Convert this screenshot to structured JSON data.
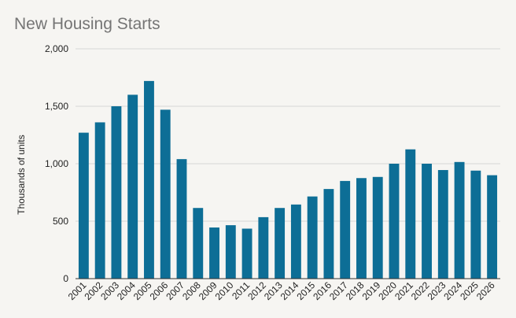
{
  "chart_data": {
    "type": "bar",
    "title": "New Housing Starts",
    "xlabel": "",
    "ylabel": "Thousands of units",
    "ylim": [
      0,
      2000
    ],
    "yticks": [
      0,
      500,
      1000,
      1500,
      2000
    ],
    "ytick_labels": [
      "0",
      "500",
      "1,000",
      "1,500",
      "2,000"
    ],
    "grid": true,
    "legend": "none",
    "bar_color": "#0d6e96",
    "categories": [
      "2001",
      "2002",
      "2003",
      "2004",
      "2005",
      "2006",
      "2007",
      "2008",
      "2009",
      "2010",
      "2011",
      "2012",
      "2013",
      "2014",
      "2015",
      "2016",
      "2017",
      "2018",
      "2019",
      "2020",
      "2021",
      "2022",
      "2023",
      "2024",
      "2025",
      "2026"
    ],
    "values": [
      1270,
      1360,
      1500,
      1600,
      1720,
      1470,
      1040,
      615,
      445,
      465,
      435,
      535,
      615,
      645,
      715,
      780,
      850,
      875,
      885,
      1000,
      1125,
      1000,
      945,
      1015,
      940,
      900
    ]
  }
}
